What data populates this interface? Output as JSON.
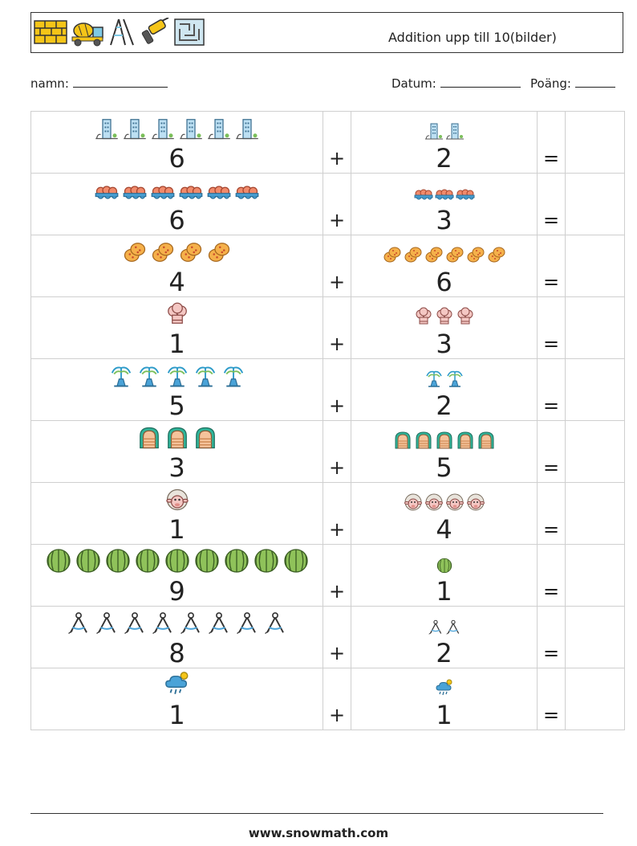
{
  "header": {
    "title": "Addition upp till 10(bilder)",
    "icons": [
      "brick-wall-icon",
      "cement-truck-icon",
      "ladder-icon",
      "drill-icon",
      "maze-icon"
    ]
  },
  "meta": {
    "name_label": "namn:",
    "date_label": "Datum:",
    "score_label": "Poäng:"
  },
  "operators": {
    "plus": "+",
    "equals": "="
  },
  "rows": [
    {
      "a": {
        "value": "6",
        "icon": "buildings-icon",
        "count": 6
      },
      "b": {
        "value": "2",
        "icon": "buildings-icon",
        "count": 2
      }
    },
    {
      "a": {
        "value": "6",
        "icon": "egg-tray-icon",
        "count": 6
      },
      "b": {
        "value": "3",
        "icon": "egg-tray-icon",
        "count": 3
      }
    },
    {
      "a": {
        "value": "4",
        "icon": "cookie-icon",
        "count": 4
      },
      "b": {
        "value": "6",
        "icon": "cookie-icon",
        "count": 6
      }
    },
    {
      "a": {
        "value": "1",
        "icon": "chef-hat-icon",
        "count": 1
      },
      "b": {
        "value": "3",
        "icon": "chef-hat-icon",
        "count": 3
      }
    },
    {
      "a": {
        "value": "5",
        "icon": "fountain-icon",
        "count": 5
      },
      "b": {
        "value": "2",
        "icon": "fountain-icon",
        "count": 2
      }
    },
    {
      "a": {
        "value": "3",
        "icon": "arch-window-icon",
        "count": 3
      },
      "b": {
        "value": "5",
        "icon": "arch-window-icon",
        "count": 5
      }
    },
    {
      "a": {
        "value": "1",
        "icon": "sheep-icon",
        "count": 1
      },
      "b": {
        "value": "4",
        "icon": "sheep-icon",
        "count": 4
      }
    },
    {
      "a": {
        "value": "9",
        "icon": "watermelon-icon",
        "count": 9
      },
      "b": {
        "value": "1",
        "icon": "watermelon-icon",
        "count": 1
      }
    },
    {
      "a": {
        "value": "8",
        "icon": "compass-icon",
        "count": 8
      },
      "b": {
        "value": "2",
        "icon": "compass-icon",
        "count": 2
      }
    },
    {
      "a": {
        "value": "1",
        "icon": "rain-cloud-icon",
        "count": 1
      },
      "b": {
        "value": "1",
        "icon": "rain-cloud-icon",
        "count": 1
      }
    }
  ],
  "footer": {
    "url": "www.snowmath.com"
  }
}
